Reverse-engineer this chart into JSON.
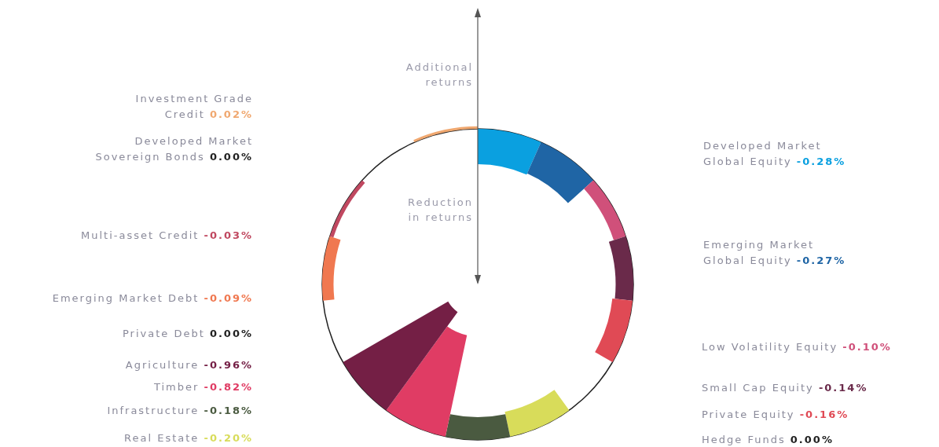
{
  "chart_data": {
    "type": "other",
    "categories": [
      "Developed Market Global Equity",
      "Emerging Market Global Equity",
      "Low Volatility Equity",
      "Small Cap Equity",
      "Private Equity",
      "Hedge Funds",
      "Real Estate",
      "Infrastructure",
      "Timber",
      "Agriculture",
      "Private Debt",
      "Emerging Market Debt",
      "Multi-asset Credit",
      "Developed Market Sovereign Bonds",
      "Investment Grade Credit"
    ],
    "values": [
      -0.28,
      -0.27,
      -0.1,
      -0.14,
      -0.16,
      0.0,
      -0.2,
      -0.18,
      -0.82,
      -0.96,
      0.0,
      -0.09,
      -0.03,
      0.0,
      0.02
    ],
    "value_labels": [
      "-0.28%",
      "-0.27%",
      "-0.10%",
      "-0.14%",
      "-0.16%",
      "0.00%",
      "-0.20%",
      "-0.18%",
      "-0.82%",
      "-0.96%",
      "0.00%",
      "-0.09%",
      "-0.03%",
      "0.00%",
      "0.02%"
    ],
    "colors": [
      "#0aa0e0",
      "#1f65a5",
      "#d0507a",
      "#6a2a4a",
      "#e04a55",
      "#222222",
      "#d8dc5a",
      "#4a5a40",
      "#e03c64",
      "#741f45",
      "#222222",
      "#f07850",
      "#c04860",
      "#222222",
      "#f0a870"
    ],
    "annotations": [
      "Additional returns",
      "Reduction in returns"
    ]
  }
}
